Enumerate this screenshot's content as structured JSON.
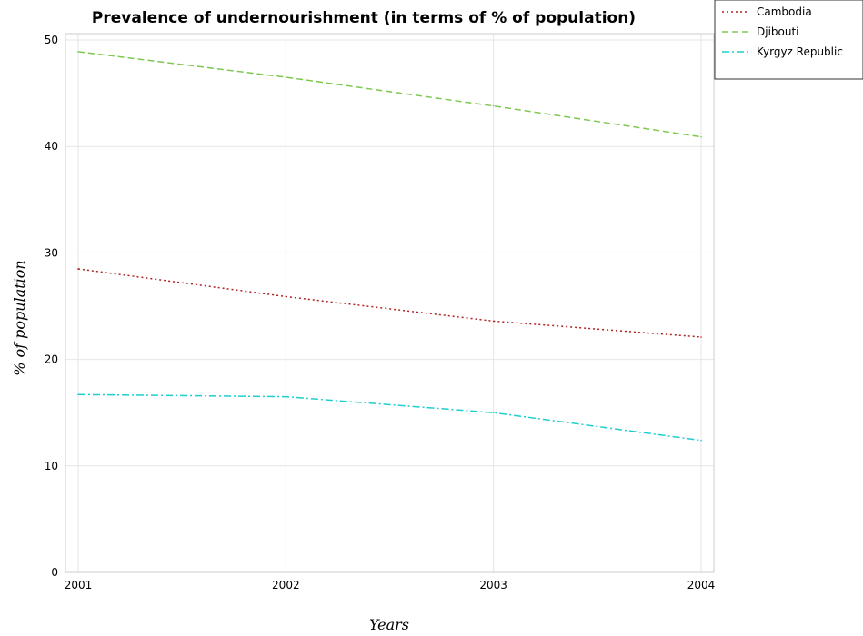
{
  "chart_data": {
    "type": "line",
    "title": "Prevalence of undernourishment (in terms of % of population)",
    "xlabel": "Years",
    "ylabel": "% of population",
    "categories": [
      "2001",
      "2002",
      "2003",
      "2004"
    ],
    "ylim": [
      0,
      50
    ],
    "yticks": [
      0,
      10,
      20,
      30,
      40,
      50
    ],
    "grid": true,
    "legend_position": "top-right",
    "series": [
      {
        "name": "Cambodia",
        "color": "#b22222",
        "dash": "dotted",
        "values": [
          28.5,
          25.9,
          23.6,
          22.1
        ]
      },
      {
        "name": "Djibouti",
        "color": "#7ec850",
        "dash": "dashed",
        "values": [
          48.9,
          46.5,
          43.8,
          40.9
        ]
      },
      {
        "name": "Kyrgyz Republic",
        "color": "#1ecfcf",
        "dash": "dashdot",
        "values": [
          16.7,
          16.5,
          15.0,
          12.4
        ]
      }
    ]
  }
}
